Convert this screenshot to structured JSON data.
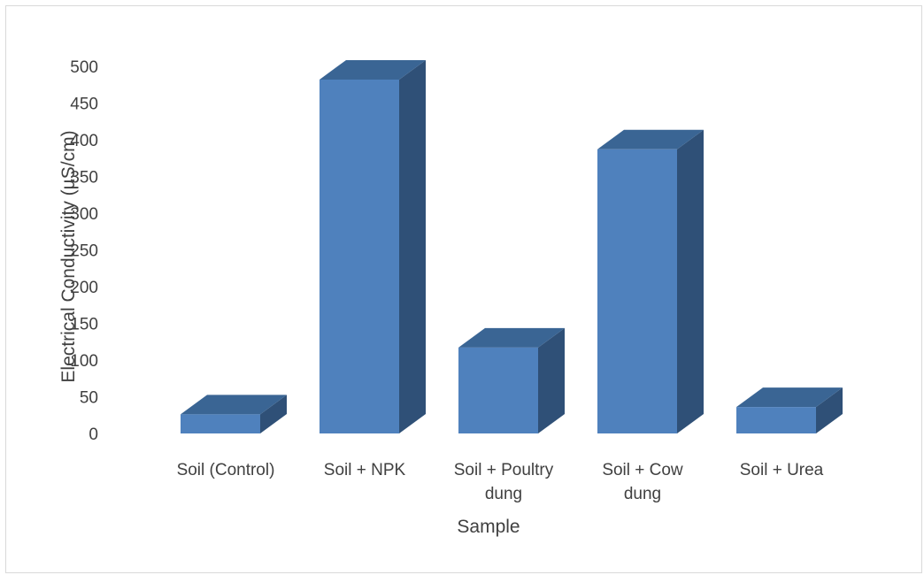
{
  "chart_data": {
    "type": "bar",
    "style": "3d-column",
    "categories": [
      [
        "Soil (Control)"
      ],
      [
        "Soil + NPK"
      ],
      [
        "Soil + Poultry",
        "dung"
      ],
      [
        "Soil + Cow",
        "dung"
      ],
      [
        "Soil + Urea"
      ]
    ],
    "values": [
      26,
      482,
      117,
      387,
      36
    ],
    "xlabel": "Sample",
    "ylabel": "Electrical Conductivity (µS/cm)",
    "ylim": [
      0,
      500
    ],
    "yticks": [
      0,
      50,
      100,
      150,
      200,
      250,
      300,
      350,
      400,
      450,
      500
    ],
    "grid": false,
    "legend": "none",
    "colors": {
      "front": "#4f81bd",
      "top": "#3a6594",
      "side": "#2f5077"
    }
  }
}
